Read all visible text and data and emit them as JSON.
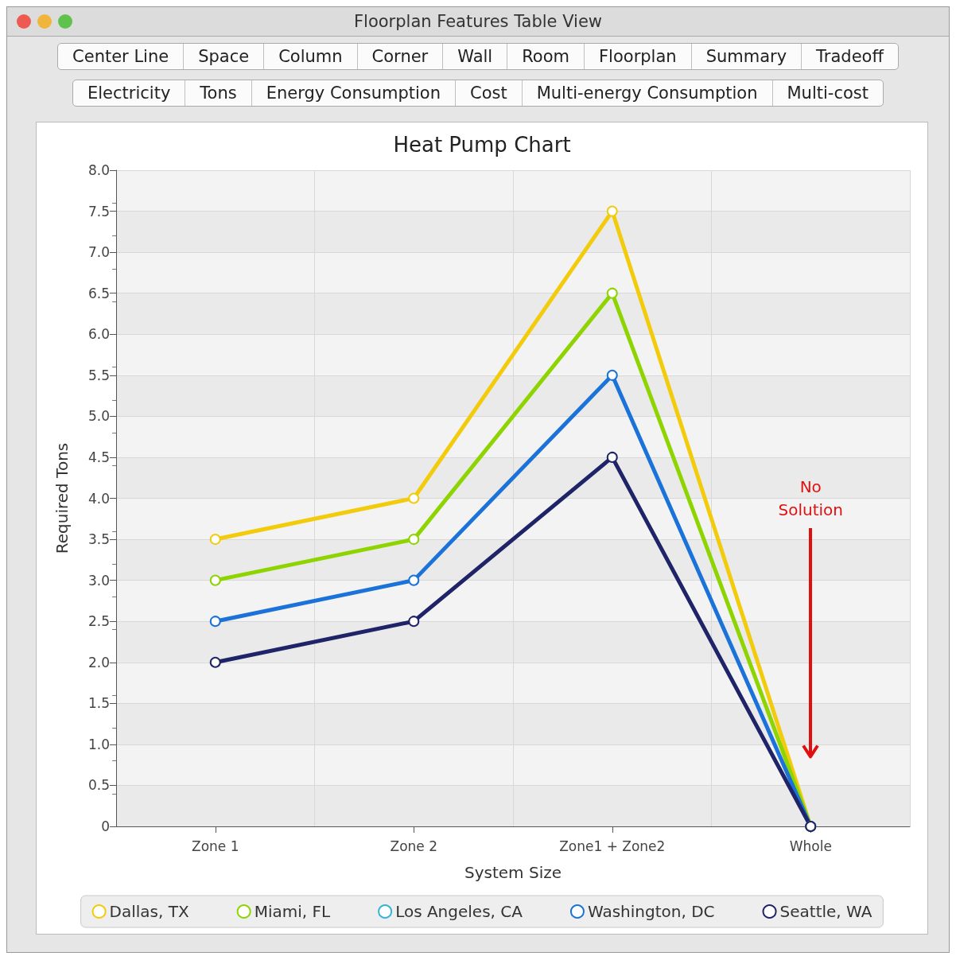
{
  "chart_data": {
    "type": "line",
    "title": "Heat Pump Chart",
    "xlabel": "System Size",
    "ylabel": "Required Tons",
    "categories": [
      "Zone 1",
      "Zone 2",
      "Zone1 + Zone2",
      "Whole"
    ],
    "series": [
      {
        "name": "Dallas, TX",
        "color": "#f2cc0c",
        "values": [
          3.5,
          4.0,
          7.5,
          0
        ]
      },
      {
        "name": "Miami, FL",
        "color": "#8ed400",
        "values": [
          3.0,
          3.5,
          6.5,
          0
        ]
      },
      {
        "name": "Los Angeles, CA",
        "color": "#35b3d8",
        "values": [
          null,
          null,
          null,
          null
        ]
      },
      {
        "name": "Washington, DC",
        "color": "#1b72d8",
        "values": [
          2.5,
          3.0,
          5.5,
          0
        ]
      },
      {
        "name": "Seattle, WA",
        "color": "#1f2468",
        "values": [
          2.0,
          2.5,
          4.5,
          0
        ]
      }
    ],
    "ylim": [
      0,
      8
    ],
    "yticks": [
      0,
      {
        "value": 0.5,
        "label": "0.5"
      },
      {
        "value": 1,
        "label": "1.0"
      },
      {
        "value": 1.5,
        "label": "1.5"
      },
      {
        "value": 2,
        "label": "2.0"
      },
      {
        "value": 2.5,
        "label": "2.5"
      },
      {
        "value": 3,
        "label": "3.0"
      },
      {
        "value": 3.5,
        "label": "3.5"
      },
      {
        "value": 4,
        "label": "4.0"
      },
      {
        "value": 4.5,
        "label": "4.5"
      },
      {
        "value": 5,
        "label": "5.0"
      },
      {
        "value": 5.5,
        "label": "5.5"
      },
      {
        "value": 6,
        "label": "6.0"
      },
      {
        "value": 6.5,
        "label": "6.5"
      },
      {
        "value": 7,
        "label": "7.0"
      },
      {
        "value": 7.5,
        "label": "7.5"
      },
      {
        "value": 8,
        "label": "8.0"
      }
    ],
    "grid": true,
    "legend": "bottom",
    "marker": "circle",
    "annotations": [
      "Floorplan Features Table View",
      "Center Line",
      "Space",
      "Column",
      "Corner",
      "Wall",
      "Room",
      "Floorplan",
      "Summary",
      "Tradeoff",
      "Electricity",
      "Tons",
      "Energy Consumption",
      "Cost",
      "Multi-energy Consumption",
      "Multi-cost",
      "No Solution"
    ]
  }
}
